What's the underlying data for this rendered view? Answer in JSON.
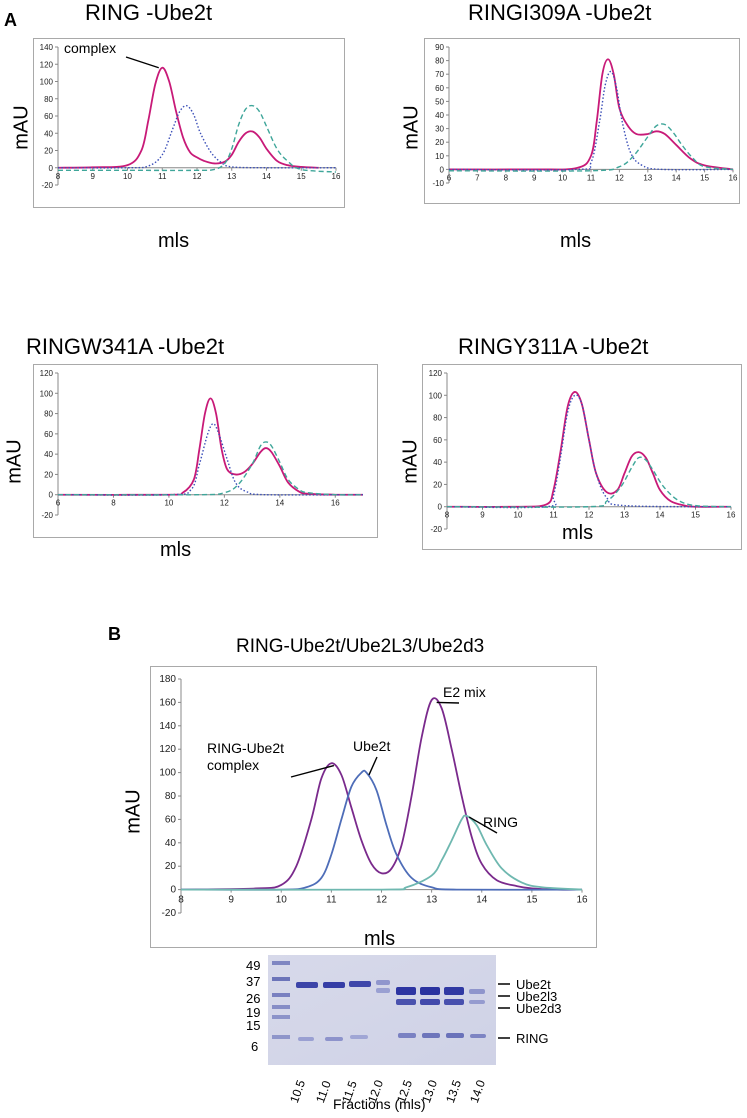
{
  "panel_labels": {
    "a": "A",
    "b": "B"
  },
  "chart_data": [
    {
      "id": "c1",
      "type": "line",
      "title": "RING -Ube2t",
      "xlabel": "mls",
      "ylabel": "mAU",
      "xlim": [
        8,
        16
      ],
      "ylim": [
        -20,
        140
      ],
      "xticks": [
        8,
        9,
        10,
        11,
        12,
        13,
        14,
        15,
        16
      ],
      "yticks": [
        -20,
        0,
        20,
        40,
        60,
        80,
        100,
        120,
        140
      ],
      "series": [
        {
          "style": "solid",
          "color": "#c81a78",
          "x": [
            8,
            9,
            10,
            10.4,
            10.6,
            10.8,
            11,
            11.2,
            11.4,
            11.6,
            11.8,
            12,
            12.2,
            12.5,
            12.8,
            13.0,
            13.2,
            13.4,
            13.6,
            13.8,
            14,
            14.3,
            14.6,
            15,
            15.5
          ],
          "y": [
            0,
            0.5,
            3,
            20,
            55,
            97,
            116,
            100,
            65,
            35,
            18,
            12,
            8,
            5,
            7,
            15,
            30,
            40,
            42,
            35,
            22,
            8,
            3,
            1,
            0
          ]
        },
        {
          "style": "dotted",
          "color": "#3b4fb8",
          "x": [
            8,
            10,
            10.6,
            11,
            11.3,
            11.5,
            11.7,
            11.9,
            12.1,
            12.4,
            12.7,
            13,
            14,
            16
          ],
          "y": [
            0,
            0,
            2,
            15,
            45,
            65,
            72,
            62,
            40,
            18,
            6,
            1,
            0,
            0
          ]
        },
        {
          "style": "dashed",
          "color": "#3fa69a",
          "x": [
            8,
            10,
            12,
            12.5,
            12.8,
            13.0,
            13.2,
            13.4,
            13.6,
            13.8,
            14.0,
            14.3,
            14.6,
            15,
            16
          ],
          "y": [
            -3,
            -3,
            -3,
            -2,
            5,
            22,
            50,
            68,
            72,
            65,
            48,
            22,
            8,
            -2,
            -5
          ]
        }
      ],
      "annotations": [
        {
          "text": "complex",
          "x": 10.9,
          "y": 116
        }
      ]
    },
    {
      "id": "c2",
      "type": "line",
      "title": "RINGI309A -Ube2t",
      "xlabel": "mls",
      "ylabel": "mAU",
      "xlim": [
        6,
        16
      ],
      "ylim": [
        -10,
        90
      ],
      "xticks": [
        6,
        7,
        8,
        9,
        10,
        11,
        12,
        13,
        14,
        15,
        16
      ],
      "yticks": [
        -10,
        0,
        10,
        20,
        30,
        40,
        50,
        60,
        70,
        80,
        90
      ],
      "series": [
        {
          "style": "solid",
          "color": "#c81a78",
          "x": [
            6,
            9,
            10.5,
            11,
            11.2,
            11.4,
            11.6,
            11.8,
            12,
            12.3,
            12.6,
            13,
            13.3,
            13.6,
            14,
            14.5,
            15,
            16
          ],
          "y": [
            0,
            0,
            1,
            10,
            35,
            70,
            81,
            70,
            45,
            32,
            26,
            26,
            28,
            26,
            18,
            8,
            3,
            0
          ]
        },
        {
          "style": "dotted",
          "color": "#3b4fb8",
          "x": [
            6,
            10.5,
            11,
            11.3,
            11.5,
            11.7,
            11.9,
            12.1,
            12.4,
            12.8,
            13.5,
            16
          ],
          "y": [
            0,
            0,
            5,
            35,
            62,
            72,
            60,
            35,
            12,
            3,
            0,
            0
          ]
        },
        {
          "style": "dashed",
          "color": "#3fa69a",
          "x": [
            6,
            11,
            12,
            12.5,
            13,
            13.3,
            13.6,
            13.9,
            14.2,
            14.6,
            15,
            16
          ],
          "y": [
            -1,
            -1,
            2,
            10,
            24,
            32,
            33,
            27,
            18,
            8,
            2,
            0
          ]
        }
      ],
      "annotations": []
    },
    {
      "id": "c3",
      "type": "line",
      "title": "RINGW341A -Ube2t",
      "xlabel": "mls",
      "ylabel": "",
      "xlim": [
        6,
        17
      ],
      "ylim": [
        -20,
        120
      ],
      "xticks": [
        6,
        8,
        10,
        12,
        14,
        16
      ],
      "yticks": [
        -20,
        0,
        20,
        40,
        60,
        80,
        100,
        120
      ],
      "series": [
        {
          "style": "solid",
          "color": "#c81a78",
          "x": [
            6,
            10,
            10.5,
            10.9,
            11.1,
            11.3,
            11.5,
            11.7,
            11.9,
            12.1,
            12.4,
            12.7,
            13.0,
            13.3,
            13.5,
            13.7,
            14,
            14.3,
            14.7,
            15,
            16,
            17
          ],
          "y": [
            0,
            0,
            2,
            15,
            45,
            80,
            95,
            80,
            45,
            25,
            20,
            22,
            30,
            42,
            46,
            42,
            28,
            12,
            3,
            1,
            0,
            0
          ]
        },
        {
          "style": "dotted",
          "color": "#3b4fb8",
          "x": [
            6,
            10,
            10.8,
            11.1,
            11.4,
            11.6,
            11.8,
            12.1,
            12.4,
            12.8,
            13.5,
            17
          ],
          "y": [
            0,
            0,
            5,
            30,
            60,
            70,
            60,
            35,
            12,
            3,
            0,
            0
          ]
        },
        {
          "style": "dashed",
          "color": "#3fa69a",
          "x": [
            6,
            11,
            12,
            12.5,
            13,
            13.3,
            13.5,
            13.7,
            14,
            14.3,
            14.7,
            15,
            16,
            17
          ],
          "y": [
            0,
            0,
            2,
            10,
            30,
            48,
            52,
            48,
            32,
            15,
            5,
            2,
            0,
            0
          ]
        }
      ],
      "annotations": []
    },
    {
      "id": "c4",
      "type": "line",
      "title": "RINGY311A -Ube2t",
      "xlabel": "mls",
      "ylabel": "mAU",
      "xlim": [
        8,
        16
      ],
      "ylim": [
        -20,
        120
      ],
      "xticks": [
        8,
        9,
        10,
        11,
        12,
        13,
        14,
        15,
        16
      ],
      "yticks": [
        -20,
        0,
        20,
        40,
        60,
        80,
        100,
        120
      ],
      "series": [
        {
          "style": "solid",
          "color": "#c81a78",
          "x": [
            8,
            10,
            10.8,
            11.0,
            11.2,
            11.4,
            11.6,
            11.8,
            12,
            12.2,
            12.5,
            12.8,
            13,
            13.2,
            13.4,
            13.6,
            13.8,
            14,
            14.3,
            14.7,
            15,
            16
          ],
          "y": [
            0,
            0,
            2,
            15,
            50,
            90,
            103,
            92,
            60,
            30,
            13,
            15,
            30,
            45,
            49,
            44,
            30,
            15,
            5,
            1,
            0,
            0
          ]
        },
        {
          "style": "dotted",
          "color": "#3b4fb8",
          "x": [
            8,
            10.8,
            11.0,
            11.2,
            11.4,
            11.6,
            11.8,
            12,
            12.2,
            12.5,
            13,
            16
          ],
          "y": [
            0,
            0,
            10,
            45,
            85,
            100,
            92,
            60,
            30,
            8,
            1,
            0
          ]
        },
        {
          "style": "dashed",
          "color": "#3fa69a",
          "x": [
            8,
            12,
            12.5,
            12.9,
            13.2,
            13.4,
            13.6,
            13.8,
            14.1,
            14.5,
            15,
            16
          ],
          "y": [
            0,
            0,
            5,
            18,
            35,
            44,
            42,
            33,
            18,
            6,
            1,
            0
          ]
        }
      ],
      "annotations": []
    },
    {
      "id": "c5",
      "type": "line",
      "title": "RING-Ube2t/Ube2L3/Ube2d3",
      "xlabel": "mls",
      "ylabel": "mAU",
      "xlim": [
        8,
        16
      ],
      "ylim": [
        -20,
        180
      ],
      "xticks": [
        8,
        9,
        10,
        11,
        12,
        13,
        14,
        15,
        16
      ],
      "yticks": [
        -20,
        0,
        20,
        40,
        60,
        80,
        100,
        120,
        140,
        160,
        180
      ],
      "series": [
        {
          "style": "solid",
          "color": "#7a2a8c",
          "x": [
            8,
            9.5,
            10,
            10.3,
            10.6,
            10.8,
            11,
            11.2,
            11.4,
            11.6,
            11.8,
            12,
            12.2,
            12.4,
            12.6,
            12.8,
            13,
            13.2,
            13.4,
            13.6,
            13.8,
            14,
            14.3,
            14.7,
            15,
            15.5,
            16
          ],
          "y": [
            0,
            1,
            4,
            20,
            60,
            95,
            108,
            98,
            70,
            42,
            22,
            14,
            18,
            38,
            80,
            130,
            162,
            155,
            120,
            80,
            45,
            22,
            8,
            3,
            1,
            0,
            0
          ]
        },
        {
          "style": "solid",
          "color": "#4e6db8",
          "x": [
            8,
            10,
            10.5,
            10.8,
            11.0,
            11.2,
            11.4,
            11.6,
            11.7,
            11.9,
            12.1,
            12.3,
            12.6,
            13,
            13.5,
            16
          ],
          "y": [
            0,
            0,
            2,
            10,
            30,
            60,
            88,
            100,
            100,
            85,
            55,
            30,
            10,
            2,
            0,
            0
          ]
        },
        {
          "style": "solid",
          "color": "#6fb8b0",
          "x": [
            8,
            12,
            12.5,
            13,
            13.2,
            13.4,
            13.6,
            13.7,
            13.9,
            14.1,
            14.4,
            14.8,
            15.2,
            16
          ],
          "y": [
            0,
            0,
            2,
            12,
            25,
            42,
            60,
            63,
            55,
            38,
            18,
            6,
            2,
            0
          ]
        }
      ],
      "annotations": [
        {
          "text": "RING-Ube2t complex"
        },
        {
          "text": "Ube2t"
        },
        {
          "text": "E2 mix"
        },
        {
          "text": "RING"
        }
      ]
    }
  ],
  "gel": {
    "markers": [
      "49",
      "37",
      "26",
      "19",
      "15",
      "6"
    ],
    "band_labels": [
      "Ube2t",
      "Ube2l3",
      "Ube2d3",
      "RING"
    ],
    "fractions": [
      "10.5",
      "11.0",
      "11.5",
      "12.0",
      "12.5",
      "13.0",
      "13.5",
      "14.0"
    ],
    "xlabel": "Fractions (mls)"
  }
}
